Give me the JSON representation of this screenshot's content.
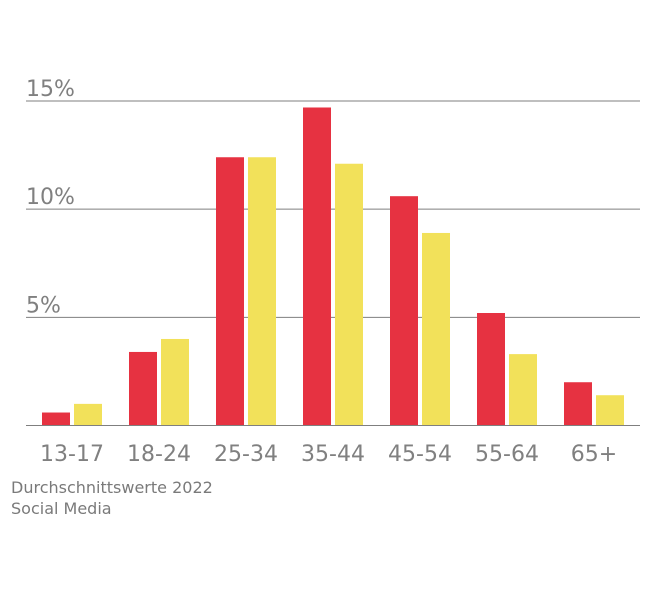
{
  "chart_data": {
    "type": "bar",
    "categories": [
      "13-17",
      "18-24",
      "25-34",
      "35-44",
      "45-54",
      "55-64",
      "65+"
    ],
    "series": [
      {
        "color": "#e63241",
        "values": [
          0.6,
          3.4,
          12.4,
          14.7,
          10.6,
          5.2,
          2.0
        ]
      },
      {
        "color": "#f2e15a",
        "values": [
          1.0,
          4.0,
          12.4,
          12.1,
          8.9,
          3.3,
          1.4
        ]
      }
    ],
    "y_ticks": [
      {
        "value": 5,
        "label": "5%"
      },
      {
        "value": 10,
        "label": "10%"
      },
      {
        "value": 15,
        "label": "15%"
      }
    ],
    "ylim": [
      0,
      15
    ],
    "grid": true,
    "legend": "none"
  },
  "captions": {
    "line1": "Durchschnittswerte 2022",
    "line2": "Social Media"
  }
}
